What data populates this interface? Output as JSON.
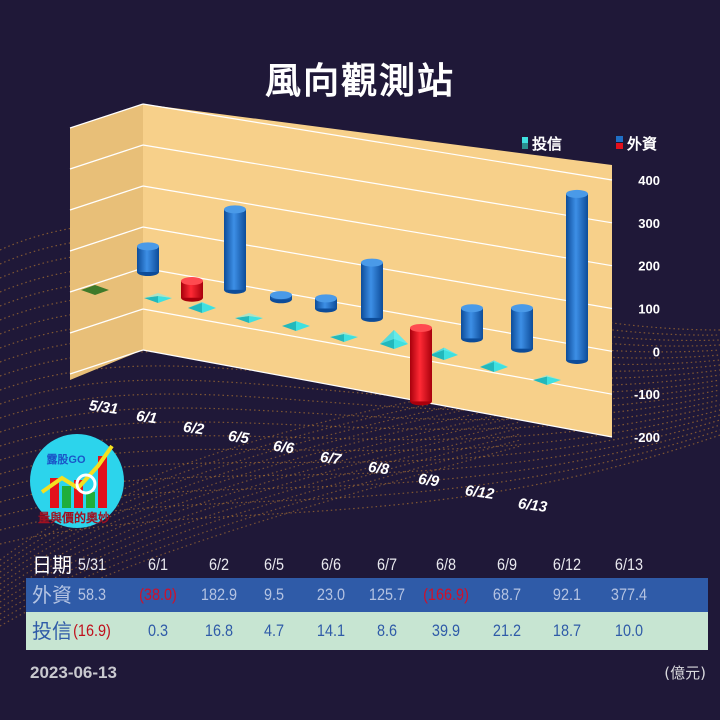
{
  "title": "風向觀測站",
  "footer": {
    "date": "2023-06-13",
    "unit": "(億元)"
  },
  "logo": {
    "name": "露股GO",
    "tagline": "量與價的奧妙"
  },
  "table": {
    "header_label": "日期",
    "dates": [
      "5/31",
      "6/1",
      "6/2",
      "6/5",
      "6/6",
      "6/7",
      "6/8",
      "6/9",
      "6/12",
      "6/13"
    ],
    "foreign_label": "外資",
    "foreign": [
      "58.3",
      "(38.0)",
      "182.9",
      "9.5",
      "23.0",
      "125.7",
      "(166.9)",
      "68.7",
      "92.1",
      "377.4"
    ],
    "trust_label": "投信",
    "trust": [
      "(16.9)",
      "0.3",
      "16.8",
      "4.7",
      "14.1",
      "8.6",
      "39.9",
      "21.2",
      "18.7",
      "10.0"
    ]
  },
  "colors": {
    "foreign": "#1f6fc6",
    "negative": "#e3101c",
    "trust": "#3fe0e0",
    "trust_negative": "#3f7a2a",
    "wall": "#f7d08a",
    "foreign_row": "#2f5ba8",
    "trust_row": "#c7e5d2"
  },
  "chart_data": {
    "type": "bar",
    "title": "",
    "categories": [
      "5/31",
      "6/1",
      "6/2",
      "6/5",
      "6/6",
      "6/7",
      "6/8",
      "6/9",
      "6/12",
      "6/13"
    ],
    "series": [
      {
        "name": "投信",
        "values": [
          -16.9,
          0.3,
          16.8,
          4.7,
          14.1,
          8.6,
          39.9,
          21.2,
          18.7,
          10.0
        ]
      },
      {
        "name": "外資",
        "values": [
          58.3,
          -38.0,
          182.9,
          9.5,
          23.0,
          125.7,
          -166.9,
          68.7,
          92.1,
          377.4
        ]
      }
    ],
    "y_ticks": [
      "400",
      "300",
      "200",
      "100",
      "0",
      "-100",
      "-200"
    ],
    "ylim": [
      -200,
      400
    ],
    "grid": true,
    "legend": "top-right",
    "style": "3d"
  }
}
